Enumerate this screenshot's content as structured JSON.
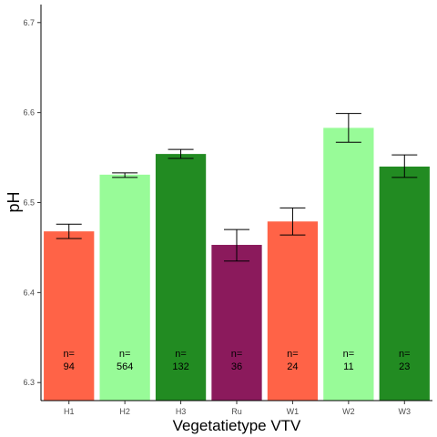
{
  "chart_data": {
    "type": "bar",
    "title": "",
    "xlabel": "Vegetatietype VTV",
    "ylabel": "pH",
    "ylim": [
      6.28,
      6.72
    ],
    "yticks": [
      "6.3",
      "6.4",
      "6.5",
      "6.6",
      "6.7"
    ],
    "grid": false,
    "legend": "none",
    "categories": [
      "H1",
      "H2",
      "H3",
      "Ru",
      "W1",
      "W2",
      "W3"
    ],
    "values": [
      6.468,
      6.531,
      6.554,
      6.453,
      6.479,
      6.583,
      6.54
    ],
    "error_low": [
      6.46,
      6.528,
      6.549,
      6.435,
      6.464,
      6.567,
      6.528
    ],
    "error_high": [
      6.476,
      6.533,
      6.559,
      6.47,
      6.494,
      6.599,
      6.553
    ],
    "n_prefix": [
      "n=",
      "n=",
      "n=",
      "n=",
      "n=",
      "n=",
      "n="
    ],
    "n_values": [
      "94",
      "564",
      "132",
      "36",
      "24",
      "11",
      "23"
    ],
    "colors": [
      "#ff6347",
      "#98fb98",
      "#228b22",
      "#8b1a5c",
      "#ff6347",
      "#98fb98",
      "#228b22"
    ]
  }
}
